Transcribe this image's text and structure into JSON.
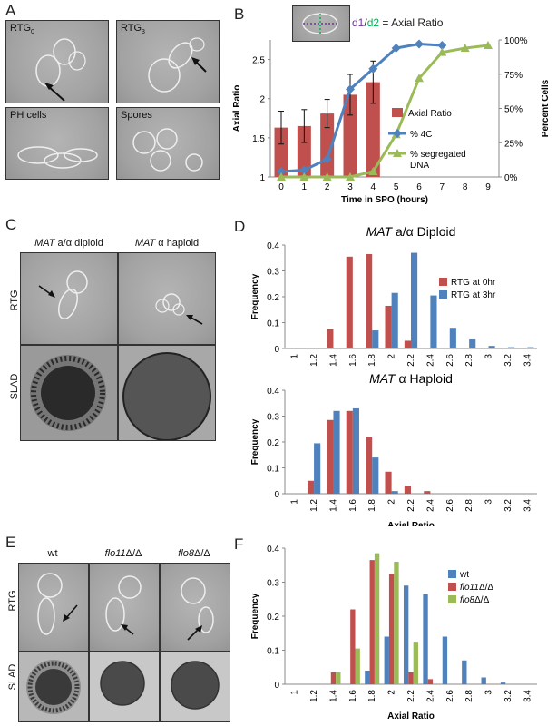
{
  "panels": {
    "A": {
      "letter": "A",
      "images": [
        {
          "label_main": "RTG",
          "label_sub": "0"
        },
        {
          "label_main": "RTG",
          "label_sub": "3"
        },
        {
          "label_main": "PH cells",
          "label_sub": ""
        },
        {
          "label_main": "Spores",
          "label_sub": ""
        }
      ]
    },
    "B": {
      "letter": "B",
      "formula_d1": "d1",
      "formula_sep": "/",
      "formula_d2": "d2",
      "formula_rest": " = Axial Ratio"
    },
    "C": {
      "letter": "C",
      "col1_italic": "MAT",
      "col1_rest": " a/α diploid",
      "col2_italic": "MAT",
      "col2_rest": " α haploid",
      "row1": "RTG",
      "row2": "SLAD"
    },
    "D": {
      "letter": "D"
    },
    "E": {
      "letter": "E",
      "col1": "wt",
      "col2_italic": "flo11",
      "col2_rest": "Δ/Δ",
      "col3_italic": "flo8",
      "col3_rest": "Δ/Δ",
      "row1": "RTG",
      "row2": "SLAD"
    },
    "F": {
      "letter": "F"
    }
  },
  "chart_data": [
    {
      "id": "B",
      "type": "bar+line",
      "xlabel": "Time in SPO (hours)",
      "ylabel": "Axial Ratio",
      "y2label": "Percent Cells",
      "x": [
        0,
        1,
        2,
        3,
        4,
        5,
        6,
        7,
        8,
        9
      ],
      "ylim": [
        1,
        2.75
      ],
      "yticks": [
        "1",
        "1.5",
        "2",
        "2.5"
      ],
      "y2lim": [
        0,
        100
      ],
      "y2ticks": [
        "0%",
        "25%",
        "50%",
        "75%",
        "100%"
      ],
      "bars": {
        "name": "Axial Ratio",
        "color": "#c0504d",
        "x": [
          0,
          1,
          2,
          3,
          4
        ],
        "values": [
          1.63,
          1.65,
          1.81,
          2.05,
          2.21
        ],
        "errors": [
          0.21,
          0.21,
          0.18,
          0.26,
          0.27
        ]
      },
      "series": [
        {
          "name": "% 4C",
          "color": "#4f81bd",
          "x": [
            0,
            1,
            2,
            3,
            4,
            5,
            6,
            7
          ],
          "values": [
            4,
            5,
            13,
            64,
            79,
            94,
            97,
            96
          ]
        },
        {
          "name": "% segregated DNA",
          "color": "#9bbb59",
          "x": [
            0,
            1,
            2,
            3,
            4,
            5,
            6,
            7,
            8,
            9
          ],
          "values": [
            0,
            0,
            0,
            0,
            4,
            31,
            72,
            91,
            94,
            96
          ]
        }
      ],
      "legend": [
        {
          "text": "Axial Ratio"
        },
        {
          "text": "% 4C"
        },
        {
          "text": "% segregated"
        },
        {
          "text": "DNA"
        }
      ]
    },
    {
      "id": "D1",
      "type": "bar",
      "title_italic": "MAT",
      "title_rest": " a/α Diploid",
      "ylabel": "Frequency",
      "categories": [
        "1",
        "1.2",
        "1.4",
        "1.6",
        "1.8",
        "2",
        "2.2",
        "2.4",
        "2.6",
        "2.8",
        "3",
        "3.2",
        "3.4"
      ],
      "ylim": [
        0,
        0.4
      ],
      "yticks": [
        "0",
        "0.1",
        "0.2",
        "0.3",
        "0.4"
      ],
      "series": [
        {
          "name": "RTG at 0hr",
          "color": "#c0504d",
          "values": [
            0,
            0,
            0.075,
            0.355,
            0.365,
            0.165,
            0.03,
            0,
            0,
            0,
            0,
            0,
            0
          ]
        },
        {
          "name": "RTG at 3hr",
          "color": "#4f81bd",
          "values": [
            0,
            0,
            0,
            0,
            0.07,
            0.215,
            0.37,
            0.205,
            0.08,
            0.035,
            0.01,
            0.005,
            0.005
          ]
        }
      ]
    },
    {
      "id": "D2",
      "type": "bar",
      "title_italic": "MAT",
      "title_rest": " α Haploid",
      "ylabel": "Frequency",
      "xlabel": "Axial Ratio",
      "categories": [
        "1",
        "1.2",
        "1.4",
        "1.6",
        "1.8",
        "2",
        "2.2",
        "2.4",
        "2.6",
        "2.8",
        "3",
        "3.2",
        "3.4"
      ],
      "ylim": [
        0,
        0.4
      ],
      "yticks": [
        "0",
        "0.1",
        "0.2",
        "0.3",
        "0.4"
      ],
      "series": [
        {
          "name": "RTG at 0hr",
          "color": "#c0504d",
          "values": [
            0,
            0.05,
            0.285,
            0.32,
            0.22,
            0.085,
            0.03,
            0.01,
            0,
            0,
            0,
            0,
            0
          ]
        },
        {
          "name": "RTG at 3hr",
          "color": "#4f81bd",
          "values": [
            0,
            0.195,
            0.32,
            0.33,
            0.14,
            0.01,
            0,
            0,
            0,
            0,
            0,
            0,
            0
          ]
        }
      ]
    },
    {
      "id": "F",
      "type": "bar",
      "ylabel": "Frequency",
      "xlabel": "Axial Ratio",
      "categories": [
        "1",
        "1.2",
        "1.4",
        "1.6",
        "1.8",
        "2",
        "2.2",
        "2.4",
        "2.6",
        "2.8",
        "3",
        "3.2",
        "3.4"
      ],
      "ylim": [
        0,
        0.4
      ],
      "yticks": [
        "0",
        "0.1",
        "0.2",
        "0.3",
        "0.4"
      ],
      "series": [
        {
          "name": "wt",
          "color": "#4f81bd",
          "values": [
            0,
            0,
            0,
            0,
            0.04,
            0.14,
            0.29,
            0.265,
            0.14,
            0.07,
            0.02,
            0.005,
            0
          ]
        },
        {
          "name": "flo11Δ/Δ",
          "name_italic": "flo11",
          "name_rest": "Δ/Δ",
          "color": "#c0504d",
          "values": [
            0,
            0,
            0.035,
            0.22,
            0.365,
            0.325,
            0.035,
            0.015,
            0,
            0,
            0,
            0,
            0
          ]
        },
        {
          "name": "flo8Δ/Δ",
          "name_italic": "flo8",
          "name_rest": "Δ/Δ",
          "color": "#9bbb59",
          "values": [
            0,
            0,
            0.035,
            0.105,
            0.385,
            0.36,
            0.125,
            0,
            0,
            0,
            0,
            0,
            0
          ]
        }
      ]
    }
  ]
}
